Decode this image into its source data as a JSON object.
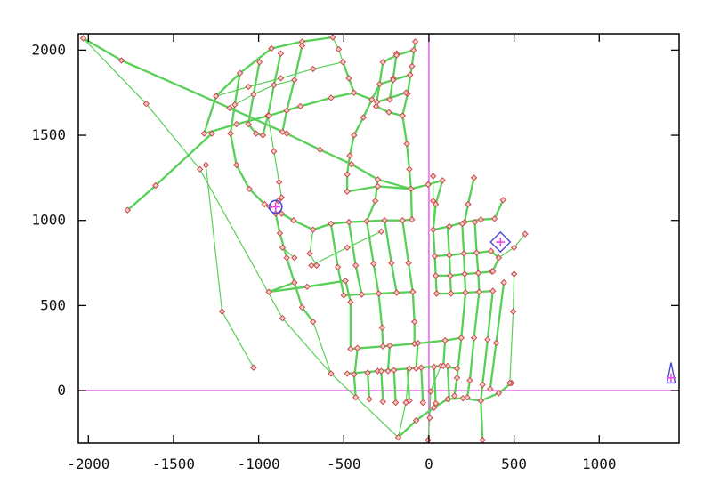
{
  "figure": {
    "background": "#ffffff",
    "border_color": "#000000"
  },
  "axes": {
    "xlim": [
      -2059,
      1469
    ],
    "ylim": [
      -308,
      2096
    ],
    "x_ticks": [
      -2000,
      -1500,
      -1000,
      -500,
      0,
      500,
      1000
    ],
    "x_tick_labels": [
      "-2000",
      "-1500",
      "-1000",
      "-500",
      "0",
      "500",
      "1000"
    ],
    "y_ticks": [
      0,
      500,
      1000,
      1500,
      2000
    ],
    "y_tick_labels": [
      "0",
      "500",
      "1000",
      "1500",
      "2000"
    ],
    "tick_length": 9
  },
  "colors": {
    "road": "#58d058",
    "node_stroke": "#cc4747",
    "node_fill": "#f6caca",
    "crosshair": "#ee44ee",
    "highlight": "#4a4ad8",
    "axis": "#000000"
  },
  "chart_data": {
    "type": "network-map",
    "description": "Road/graph network plotted in plan view; green edges with small red node markers, magenta crosshair axes at x=0 and y=0, blue highlighted circle and diamond regions with magenta crosses, and a small blue vehicle triangle near the right border.",
    "crosshair": {
      "x": 0,
      "y": 0
    },
    "markers_at_vertices": true,
    "highlight_circle": {
      "x": -900,
      "y": 1080,
      "radius": 37
    },
    "highlight_diamond": {
      "x": 420,
      "y": 873,
      "radius": 58
    },
    "vehicle": {
      "x": 1422,
      "cross_y": 75,
      "tip_y": 165,
      "base_y": 45,
      "half_width": 24
    },
    "edges": [
      {
        "p": [
          -2030,
          2070,
          -1805,
          1940,
          -1170,
          1660,
          -835,
          1510
        ]
      },
      {
        "p": [
          -835,
          1510,
          -640,
          1415,
          -455,
          1330,
          -300,
          1240,
          -105,
          1185
        ]
      },
      {
        "p": [
          -2030,
          2070,
          -1660,
          1685,
          -1345,
          1300,
          -860,
          425,
          -575,
          100,
          -180,
          -275
        ],
        "t": 1
      },
      {
        "p": [
          -1275,
          1510,
          -1605,
          1205,
          -1770,
          1060
        ]
      },
      {
        "p": [
          -1310,
          1325,
          -1215,
          465,
          -1030,
          135
        ],
        "t": 1
      },
      {
        "p": [
          -925,
          2010,
          -1110,
          1865,
          -1250,
          1730,
          -1320,
          1510
        ]
      },
      {
        "p": [
          -925,
          2010,
          -745,
          2050,
          -565,
          2075
        ]
      },
      {
        "p": [
          -1110,
          1865,
          -1140,
          1680,
          -1165,
          1510
        ]
      },
      {
        "p": [
          -995,
          1930,
          -1030,
          1740,
          -1060,
          1565
        ]
      },
      {
        "p": [
          -870,
          1980,
          -910,
          1795,
          -945,
          1615,
          -975,
          1500
        ]
      },
      {
        "p": [
          -745,
          2025,
          -790,
          1825,
          -835,
          1645,
          -860,
          1520
        ]
      },
      {
        "p": [
          -1250,
          1730,
          -1060,
          1785,
          -870,
          1835,
          -680,
          1890,
          -505,
          1930
        ],
        "t": 1
      },
      {
        "p": [
          -1320,
          1510,
          -1130,
          1565,
          -940,
          1615,
          -755,
          1670,
          -575,
          1720,
          -440,
          1750
        ]
      },
      {
        "p": [
          -1165,
          1510,
          -1130,
          1325,
          -1055,
          1185,
          -965,
          1095
        ]
      },
      {
        "p": [
          -945,
          1615,
          -910,
          1405,
          -880,
          1225,
          -865,
          1135
        ],
        "t": 1
      },
      {
        "p": [
          -965,
          1095,
          -935,
          1080
        ]
      },
      {
        "p": [
          -865,
          1135,
          -885,
          1115
        ]
      },
      {
        "p": [
          -865,
          1040,
          -795,
          1000,
          -680,
          945,
          -575,
          980
        ]
      },
      {
        "p": [
          -900,
          1040,
          -875,
          925,
          -835,
          780,
          -790,
          635,
          -745,
          490,
          -680,
          405
        ]
      },
      {
        "p": [
          -680,
          405,
          -575,
          100
        ],
        "t": 1
      },
      {
        "p": [
          -940,
          580,
          -715,
          610,
          -490,
          645
        ]
      },
      {
        "p": [
          -790,
          635,
          -940,
          580
        ]
      },
      {
        "p": [
          -490,
          645,
          -460,
          520
        ]
      },
      {
        "p": [
          -440,
          1750,
          -335,
          1710
        ]
      },
      {
        "p": [
          -335,
          1710,
          -385,
          1605,
          -440,
          1500,
          -465,
          1380,
          -480,
          1270,
          -480,
          1170
        ]
      },
      {
        "p": [
          -480,
          1170,
          -300,
          1200,
          -105,
          1185
        ]
      },
      {
        "p": [
          -105,
          1185,
          -5,
          1210,
          80,
          1235
        ]
      },
      {
        "p": [
          80,
          1235,
          40,
          1095,
          25,
          945
        ]
      },
      {
        "p": [
          -80,
          2050,
          -100,
          1905,
          -125,
          1745,
          -155,
          1615
        ]
      },
      {
        "p": [
          -270,
          1930,
          -290,
          1800,
          -310,
          1670
        ]
      },
      {
        "p": [
          -190,
          1980,
          -210,
          1835,
          -230,
          1710
        ]
      },
      {
        "p": [
          -270,
          1930,
          -190,
          1970,
          -90,
          2000
        ]
      },
      {
        "p": [
          -290,
          1800,
          -210,
          1825,
          -110,
          1855
        ]
      },
      {
        "p": [
          -305,
          1695,
          -225,
          1720,
          -135,
          1750
        ]
      },
      {
        "p": [
          -310,
          1670,
          -235,
          1635,
          -155,
          1615
        ]
      },
      {
        "p": [
          -155,
          1615,
          -130,
          1450,
          -115,
          1300,
          -105,
          1185
        ]
      },
      {
        "p": [
          -335,
          1710,
          -290,
          1800
        ]
      },
      {
        "p": [
          -575,
          980,
          -535,
          725,
          -500,
          560
        ]
      },
      {
        "p": [
          -470,
          990,
          -430,
          735,
          -395,
          565
        ]
      },
      {
        "p": [
          -365,
          995,
          -325,
          745,
          -295,
          570
        ]
      },
      {
        "p": [
          -260,
          1000,
          -220,
          750,
          -190,
          575
        ]
      },
      {
        "p": [
          -155,
          1000,
          -120,
          750,
          -95,
          580
        ]
      },
      {
        "p": [
          -575,
          980,
          -470,
          990,
          -365,
          995,
          -260,
          1000,
          -155,
          1000,
          -100,
          1005
        ]
      },
      {
        "p": [
          -105,
          1185,
          -100,
          1005
        ]
      },
      {
        "p": [
          -690,
          735,
          -480,
          840,
          -280,
          935
        ],
        "t": 1
      },
      {
        "p": [
          -500,
          560,
          -395,
          565,
          -295,
          570,
          -190,
          575,
          -95,
          580
        ]
      },
      {
        "p": [
          -680,
          945,
          -700,
          805,
          -660,
          735
        ],
        "t": 1
      },
      {
        "p": [
          -860,
          840,
          -790,
          780
        ],
        "t": 1
      },
      {
        "p": [
          25,
          945,
          120,
          965,
          210,
          990,
          305,
          1005,
          385,
          1010
        ]
      },
      {
        "p": [
          25,
          945,
          35,
          790,
          40,
          675,
          45,
          570
        ]
      },
      {
        "p": [
          110,
          955,
          120,
          795,
          125,
          675,
          130,
          570
        ]
      },
      {
        "p": [
          195,
          980,
          205,
          805,
          210,
          685,
          215,
          575
        ]
      },
      {
        "p": [
          270,
          990,
          280,
          810,
          290,
          690,
          295,
          580
        ]
      },
      {
        "p": [
          35,
          790,
          120,
          795,
          205,
          805,
          280,
          810,
          365,
          820
        ]
      },
      {
        "p": [
          40,
          675,
          125,
          675,
          210,
          685,
          290,
          690,
          370,
          700
        ]
      },
      {
        "p": [
          45,
          570,
          130,
          570,
          215,
          575,
          295,
          580,
          375,
          585
        ]
      },
      {
        "p": [
          385,
          1010,
          435,
          1120
        ]
      },
      {
        "p": [
          365,
          820,
          410,
          780
        ]
      },
      {
        "p": [
          410,
          780,
          500,
          840,
          565,
          920
        ],
        "t": 1
      },
      {
        "p": [
          410,
          780,
          375,
          700
        ]
      },
      {
        "p": [
          215,
          575,
          190,
          310,
          165,
          75,
          150,
          -30
        ]
      },
      {
        "p": [
          295,
          580,
          265,
          310,
          240,
          60,
          225,
          -40
        ]
      },
      {
        "p": [
          375,
          585,
          345,
          300,
          315,
          35,
          305,
          -60
        ]
      },
      {
        "p": [
          440,
          635,
          395,
          280,
          360,
          10
        ]
      },
      {
        "p": [
          110,
          -50,
          200,
          -45,
          305,
          -60,
          410,
          -15,
          485,
          45
        ]
      },
      {
        "p": [
          500,
          685,
          495,
          465,
          475,
          45
        ],
        "t": 1
      },
      {
        "p": [
          265,
          1250,
          230,
          1095,
          210,
          990
        ]
      },
      {
        "p": [
          -460,
          245,
          -270,
          260,
          -85,
          275,
          95,
          295,
          190,
          310
        ]
      },
      {
        "p": [
          -480,
          100,
          -300,
          115,
          -115,
          130,
          70,
          145,
          165,
          130
        ]
      },
      {
        "p": [
          -440,
          95,
          -430,
          -40
        ]
      },
      {
        "p": [
          -360,
          105,
          -350,
          -50
        ]
      },
      {
        "p": [
          -280,
          115,
          -270,
          -65
        ]
      },
      {
        "p": [
          -205,
          120,
          -195,
          -70
        ]
      },
      {
        "p": [
          -125,
          130,
          -115,
          -60
        ]
      },
      {
        "p": [
          -45,
          135,
          -35,
          -70
        ]
      },
      {
        "p": [
          30,
          140,
          40,
          -75
        ]
      },
      {
        "p": [
          110,
          145,
          120,
          -60
        ]
      },
      {
        "p": [
          -420,
          250,
          -435,
          100
        ]
      },
      {
        "p": [
          -230,
          265,
          -240,
          115
        ]
      },
      {
        "p": [
          -65,
          280,
          -75,
          130
        ]
      },
      {
        "p": [
          95,
          295,
          85,
          145
        ]
      },
      {
        "p": [
          -460,
          520,
          -460,
          245
        ]
      },
      {
        "p": [
          -295,
          570,
          -275,
          370,
          -270,
          260
        ]
      },
      {
        "p": [
          -95,
          580,
          -85,
          405,
          -85,
          275
        ]
      },
      {
        "p": [
          -180,
          -275,
          -75,
          -175,
          30,
          -100,
          110,
          -50
        ]
      },
      {
        "p": [
          -180,
          -275,
          -135,
          -70,
          -115,
          130
        ],
        "t": 1
      },
      {
        "p": [
          70,
          145,
          10,
          -5,
          5,
          -160,
          -5,
          -290
        ],
        "t": 1
      },
      {
        "p": [
          305,
          -60,
          315,
          -290
        ]
      },
      {
        "p": [
          25,
          1260,
          25,
          1115,
          25,
          945
        ],
        "t": 1
      },
      {
        "p": [
          -300,
          1240,
          -315,
          1115,
          -365,
          995
        ]
      },
      {
        "p": [
          -680,
          945,
          -575,
          980
        ]
      },
      {
        "p": [
          -1060,
          1565,
          -1015,
          1510,
          -975,
          1500
        ]
      },
      {
        "p": [
          -1140,
          1680,
          -1030,
          1740,
          -910,
          1795,
          -790,
          1825
        ],
        "t": 1
      },
      {
        "p": [
          -565,
          2075,
          -530,
          2005,
          -505,
          1930
        ],
        "t": 1
      },
      {
        "p": [
          -505,
          1930,
          -470,
          1835,
          -440,
          1750
        ]
      }
    ]
  }
}
